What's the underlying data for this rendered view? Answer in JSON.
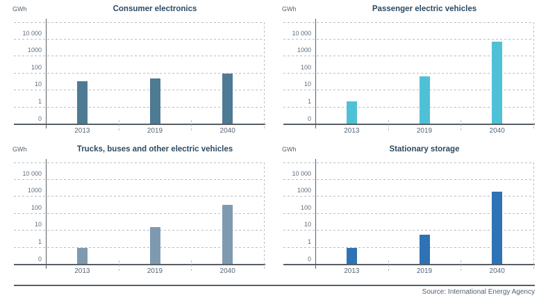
{
  "page": {
    "background": "#ffffff",
    "source_label": "Source: International Energy Agency"
  },
  "colors": {
    "axis": "#565d63",
    "gridline": "#b7bdc2",
    "title_text": "#2d4a61",
    "tick_text": "#5a6b7d",
    "unit_text": "#50616f",
    "source_text": "#4f6071"
  },
  "chart_data": [
    {
      "type": "bar",
      "title": "Consumer electronics",
      "ylabel": "GWh",
      "yscale": "log",
      "ytick_labels": [
        "10 000",
        "1000",
        "100",
        "10",
        "1",
        "0"
      ],
      "grid": "dashed",
      "legend": "none",
      "categories": [
        "2013",
        "2019",
        "2040"
      ],
      "values": [
        30,
        45,
        90
      ],
      "bar_color": "#4e7a93"
    },
    {
      "type": "bar",
      "title": "Passenger electric vehicles",
      "ylabel": "GWh",
      "yscale": "log",
      "ytick_labels": [
        "10 000",
        "1000",
        "100",
        "10",
        "1",
        "0"
      ],
      "grid": "dashed",
      "legend": "none",
      "categories": [
        "2013",
        "2019",
        "2040"
      ],
      "values": [
        2,
        60,
        6500
      ],
      "bar_color": "#4fc1d6"
    },
    {
      "type": "bar",
      "title": "Trucks, buses and other electric vehicles",
      "ylabel": "GWh",
      "yscale": "log",
      "ytick_labels": [
        "10 000",
        "1000",
        "100",
        "10",
        "1",
        "0"
      ],
      "grid": "dashed",
      "legend": "none",
      "categories": [
        "2013",
        "2019",
        "2040"
      ],
      "values": [
        0.9,
        15,
        300
      ],
      "bar_color": "#7e9ab1"
    },
    {
      "type": "bar",
      "title": "Stationary storage",
      "ylabel": "GWh",
      "yscale": "log",
      "ytick_labels": [
        "10 000",
        "1000",
        "100",
        "10",
        "1",
        "0"
      ],
      "grid": "dashed",
      "legend": "none",
      "categories": [
        "2013",
        "2019",
        "2040"
      ],
      "values": [
        0.9,
        5,
        1800
      ],
      "bar_color": "#2e73b5"
    }
  ]
}
